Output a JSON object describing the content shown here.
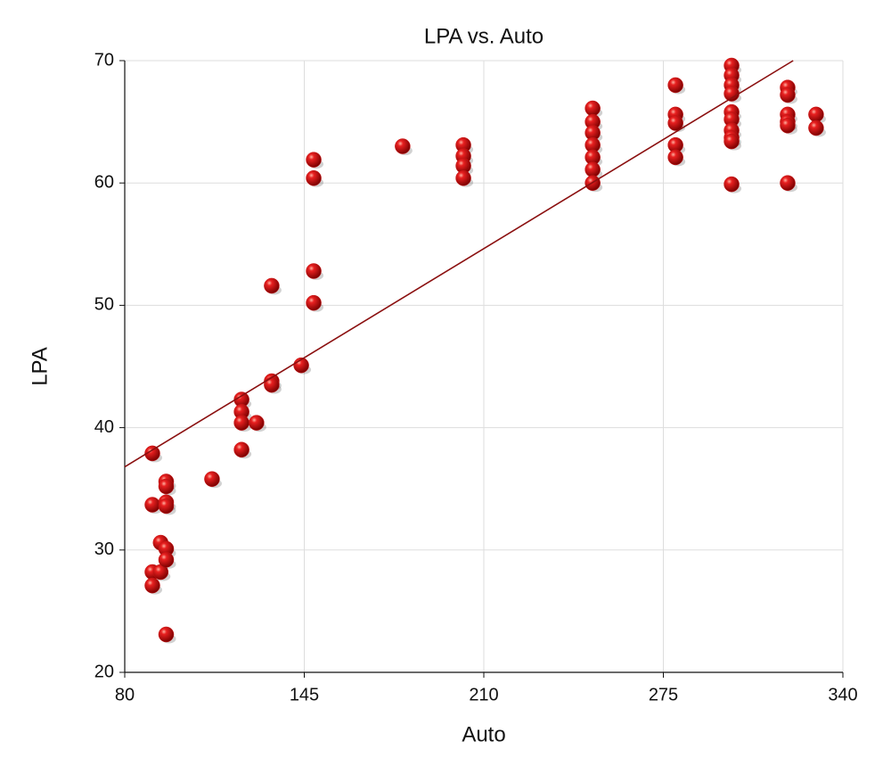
{
  "chart_data": {
    "type": "scatter",
    "title": "LPA vs. Auto",
    "x_label": "Auto",
    "y_label": "LPA",
    "color": "#cc1111",
    "trend_color": "#8b1010",
    "grid": true,
    "xlim": [
      80,
      340
    ],
    "xticks": [
      80,
      145,
      210,
      275,
      340
    ],
    "ylim": [
      20,
      70
    ],
    "yticks": [
      20,
      30,
      40,
      50,
      60,
      70
    ],
    "x": [
      90,
      90,
      90,
      90,
      93,
      93,
      95,
      95,
      95,
      95,
      95,
      95,
      95,
      111.6,
      122.3,
      122.3,
      122.3,
      122.3,
      127.7,
      133.2,
      133.2,
      133.2,
      143.9,
      148.4,
      148.4,
      148.4,
      148.4,
      180.6,
      202.6,
      202.6,
      202.6,
      202.6,
      249.4,
      249.4,
      249.4,
      249.4,
      249.4,
      249.4,
      249.4,
      279.4,
      279.4,
      279.4,
      279.4,
      279.4,
      299.7,
      299.7,
      299.7,
      299.7,
      299.7,
      299.7,
      299.7,
      299.7,
      299.7,
      299.7,
      320,
      320,
      320,
      320,
      320,
      320,
      330.3,
      330.3
    ],
    "values": [
      37.9,
      33.7,
      28.2,
      27.1,
      30.6,
      28.2,
      35.6,
      35.2,
      33.9,
      33.6,
      30.1,
      29.2,
      23.1,
      35.8,
      42.3,
      41.3,
      40.4,
      38.2,
      40.4,
      51.6,
      43.8,
      43.5,
      45.1,
      61.9,
      60.4,
      52.8,
      50.2,
      63.0,
      63.1,
      62.2,
      61.4,
      60.4,
      66.1,
      65.0,
      64.1,
      63.1,
      62.1,
      61.1,
      60.0,
      68.0,
      65.6,
      64.9,
      63.1,
      62.1,
      69.6,
      68.8,
      68.0,
      67.3,
      65.8,
      65.2,
      64.3,
      63.7,
      63.4,
      59.9,
      67.8,
      67.2,
      65.6,
      65.0,
      64.7,
      60.0,
      65.6,
      64.5
    ],
    "trendline": {
      "x": [
        80,
        322
      ],
      "y": [
        36.8,
        70
      ]
    }
  }
}
